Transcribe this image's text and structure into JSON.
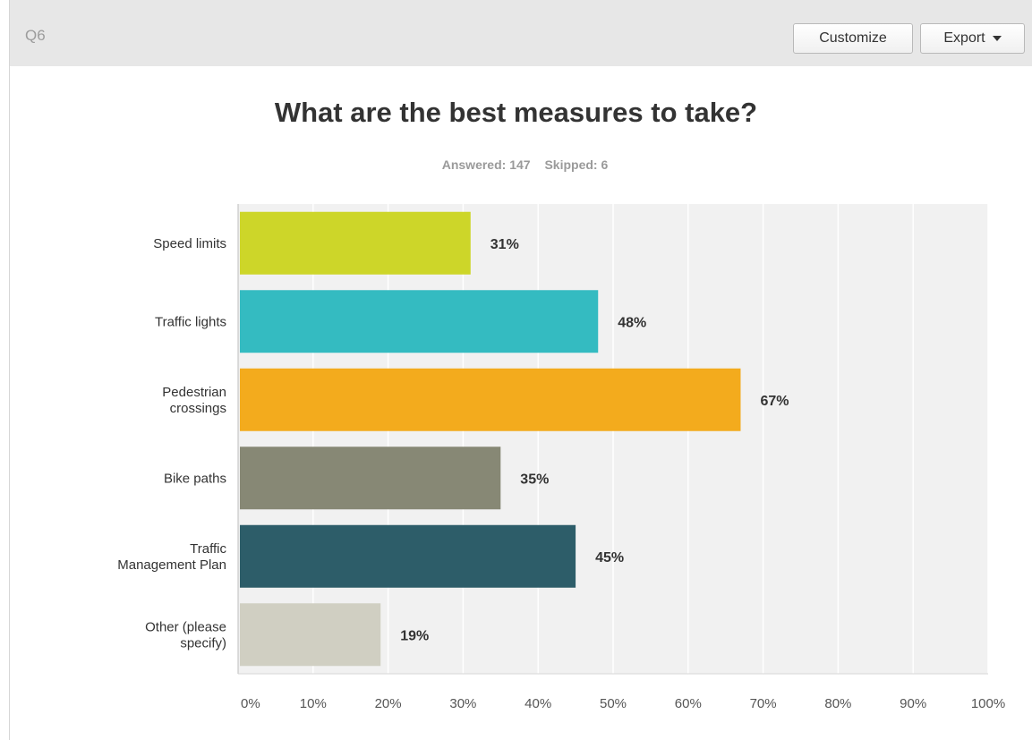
{
  "header": {
    "question_number": "Q6",
    "customize_label": "Customize",
    "export_label": "Export"
  },
  "survey": {
    "answered": "Answered: 147",
    "skipped": "Skipped: 6"
  },
  "chart_data": {
    "type": "bar",
    "orientation": "horizontal",
    "title": "What are the best measures to take?",
    "categories": [
      [
        "Speed limits"
      ],
      [
        "Traffic lights"
      ],
      [
        "Pedestrian",
        "crossings"
      ],
      [
        "Bike paths"
      ],
      [
        "Traffic",
        "Management Plan"
      ],
      [
        "Other (please",
        "specify)"
      ]
    ],
    "values": [
      31,
      48,
      67,
      35,
      45,
      19
    ],
    "value_labels": [
      "31%",
      "48%",
      "67%",
      "35%",
      "45%",
      "19%"
    ],
    "colors": [
      "#cdd629",
      "#34bbc1",
      "#f3ab1d",
      "#878875",
      "#2d5d69",
      "#d0cfc2"
    ],
    "xlim": [
      0,
      100
    ],
    "xticks": [
      0,
      10,
      20,
      30,
      40,
      50,
      60,
      70,
      80,
      90,
      100
    ],
    "xtick_labels": [
      "0%",
      "10%",
      "20%",
      "30%",
      "40%",
      "50%",
      "60%",
      "70%",
      "80%",
      "90%",
      "100%"
    ],
    "grid": true
  }
}
